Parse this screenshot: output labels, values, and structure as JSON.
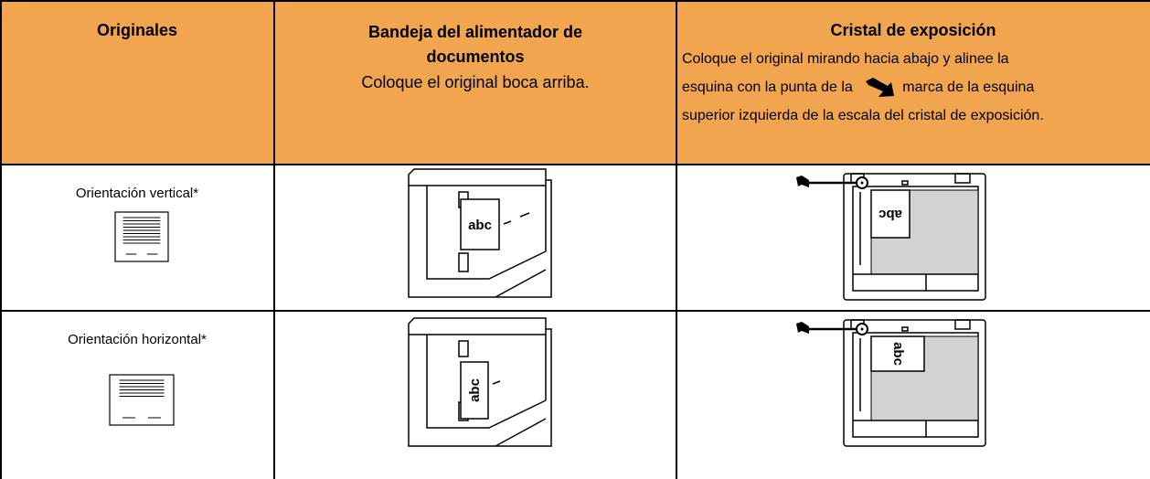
{
  "header": {
    "columns": [
      {
        "title": "Originales"
      },
      {
        "title": "Bandeja del alimentador de documentos",
        "subtitle": "Coloque el original boca arriba."
      },
      {
        "title": "Cristal de exposición",
        "description": [
          "Coloque el original mirando hacia abajo y alinee la",
          "esquina con la punta de la",
          "marca de la esquina",
          "superior izquierda de la escala del cristal de exposición."
        ]
      }
    ]
  },
  "rows": [
    {
      "original": "Orientación vertical*",
      "feeder_label": "abc",
      "glass_label": "abc"
    },
    {
      "original": "Orientación horizontal*",
      "feeder_label": "abc",
      "glass_label": "abc"
    }
  ]
}
